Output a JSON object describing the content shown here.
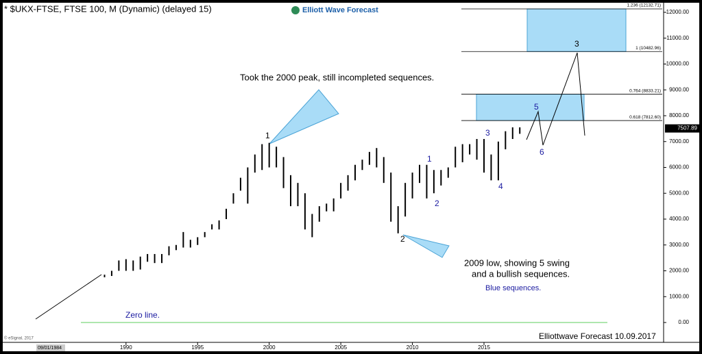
{
  "chart_data": {
    "type": "range",
    "title": "* $UKX-FTSE, FTSE 100, M (Dynamic) (delayed 15)",
    "brand": "Elliott Wave Forecast",
    "x": [
      1988.5,
      1989,
      1989.5,
      1990,
      1990.5,
      1991,
      1991.5,
      1992,
      1992.5,
      1993,
      1993.5,
      1994,
      1994.5,
      1995,
      1995.5,
      1996,
      1996.5,
      1997,
      1997.5,
      1998,
      1998.5,
      1999,
      1999.5,
      2000,
      2000.5,
      2001,
      2001.5,
      2002,
      2002.5,
      2003,
      2003.5,
      2004,
      2004.5,
      2005,
      2005.5,
      2006,
      2006.5,
      2007,
      2007.5,
      2008,
      2008.5,
      2009,
      2009.5,
      2010,
      2010.5,
      2011,
      2011.5,
      2012,
      2012.5,
      2013,
      2013.5,
      2014,
      2014.5,
      2015,
      2015.5,
      2016,
      2016.5,
      2017,
      2017.5
    ],
    "series": [
      {
        "color": "#000000",
        "high": [
          1850,
          2000,
          2400,
          2450,
          2400,
          2550,
          2650,
          2650,
          2650,
          2950,
          3000,
          3500,
          3200,
          3300,
          3500,
          3800,
          3950,
          4400,
          5000,
          5600,
          6000,
          6500,
          6900,
          6950,
          6800,
          6400,
          5700,
          5400,
          5000,
          4200,
          4500,
          4600,
          4800,
          5400,
          5700,
          6100,
          6300,
          6600,
          6750,
          6400,
          5800,
          4500,
          5400,
          5800,
          6100,
          6100,
          5900,
          5900,
          6000,
          6800,
          6900,
          6900,
          7100,
          7100,
          6500,
          7000,
          7400,
          7550,
          7550
        ],
        "low": [
          1750,
          1800,
          2000,
          2000,
          2000,
          2050,
          2350,
          2300,
          2300,
          2600,
          2800,
          2900,
          2900,
          3000,
          3300,
          3600,
          3600,
          4000,
          4600,
          5100,
          4600,
          5800,
          5900,
          6000,
          6000,
          5200,
          4500,
          4500,
          3600,
          3300,
          3900,
          4300,
          4300,
          4800,
          5100,
          5500,
          5900,
          6100,
          6000,
          5400,
          3900,
          3450,
          4100,
          4800,
          5400,
          4800,
          5000,
          5300,
          5600,
          6000,
          6200,
          6500,
          6300,
          5800,
          5500,
          5500,
          6700,
          7100,
          7300
        ]
      }
    ],
    "xlim": [
      1981.2,
      2027.4
    ],
    "ylim": [
      0,
      12000
    ],
    "xticks": [
      1990,
      1995,
      2000,
      2005,
      2010,
      2015
    ],
    "yticks": [
      {
        "value": 0,
        "label": "0.00"
      },
      {
        "value": 1000,
        "label": "1000.00"
      },
      {
        "value": 2000,
        "label": "2000.00"
      },
      {
        "value": 3000,
        "label": "3000.00"
      },
      {
        "value": 4000,
        "label": "4000.00"
      },
      {
        "value": 5000,
        "label": "5000.00"
      },
      {
        "value": 6000,
        "label": "6000.00"
      },
      {
        "value": 7000,
        "label": "7000.00"
      },
      {
        "value": 8000,
        "label": "8000.00"
      },
      {
        "value": 9000,
        "label": "9000.00"
      },
      {
        "value": 10000,
        "label": "10000.00"
      },
      {
        "value": 11000,
        "label": "11000.00"
      },
      {
        "value": 12000,
        "label": "12000.00"
      }
    ],
    "fib_levels": [
      {
        "value": 12132.71,
        "label": "1.236 (12132.71)"
      },
      {
        "value": 10482.96,
        "label": "1 (10482.96)"
      },
      {
        "value": 8833.21,
        "label": "0.764 (8833.21)"
      },
      {
        "value": 7812.6,
        "label": "0.618 (7812.60)"
      }
    ],
    "last_price": {
      "value": 7507.89,
      "label": "7507.89"
    },
    "zero_line": {
      "value": 0,
      "label": "Zero line."
    },
    "annotations": {
      "peak": "Took the 2000 peak, still incompleted sequences.",
      "low_1": "2009 low, showing 5 swing",
      "low_2": "and a bullish sequences.",
      "blue": "Blue sequences."
    },
    "waves": {
      "black": [
        "1",
        "2",
        "3"
      ],
      "blue": [
        "1",
        "2",
        "3",
        "4",
        "5",
        "6"
      ]
    },
    "start_date": "09/01/1984",
    "copyright": "© eSignal, 2017",
    "footer": "Elliottwave Forecast  10.09.2017"
  }
}
